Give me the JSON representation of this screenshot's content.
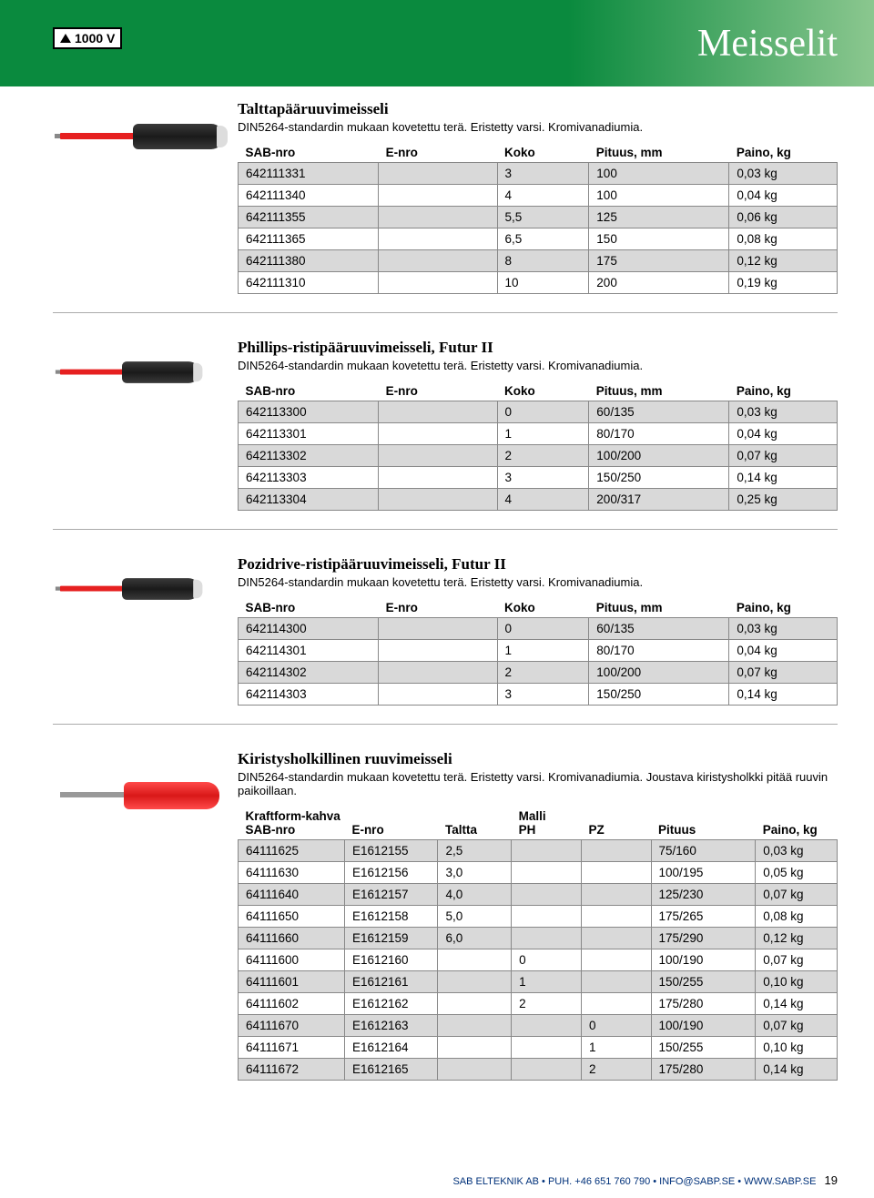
{
  "header": {
    "title": "Meisselit",
    "badge": "1000 V",
    "band_color_start": "#0a8a3e",
    "band_color_end": "#8bc78f"
  },
  "columns_std": [
    "SAB-nro",
    "E-nro",
    "Koko",
    "Pituus, mm",
    "Paino, kg"
  ],
  "section1": {
    "title": "Talttapääruuvimeisseli",
    "desc": "DIN5264-standardin mukaan kovetettu terä. Eristetty varsi. Kromivanadiumia.",
    "rows": [
      [
        "642111331",
        "",
        "3",
        "100",
        "0,03 kg"
      ],
      [
        "642111340",
        "",
        "4",
        "100",
        "0,04 kg"
      ],
      [
        "642111355",
        "",
        "5,5",
        "125",
        "0,06 kg"
      ],
      [
        "642111365",
        "",
        "6,5",
        "150",
        "0,08 kg"
      ],
      [
        "642111380",
        "",
        "8",
        "175",
        "0,12 kg"
      ],
      [
        "642111310",
        "",
        "10",
        "200",
        "0,19 kg"
      ]
    ]
  },
  "section2": {
    "title": "Phillips-ristipääruuvimeisseli, Futur II",
    "desc": "DIN5264-standardin mukaan kovetettu terä. Eristetty varsi. Kromivanadiumia.",
    "rows": [
      [
        "642113300",
        "",
        "0",
        "60/135",
        "0,03 kg"
      ],
      [
        "642113301",
        "",
        "1",
        "80/170",
        "0,04 kg"
      ],
      [
        "642113302",
        "",
        "2",
        "100/200",
        "0,07 kg"
      ],
      [
        "642113303",
        "",
        "3",
        "150/250",
        "0,14 kg"
      ],
      [
        "642113304",
        "",
        "4",
        "200/317",
        "0,25 kg"
      ]
    ]
  },
  "section3": {
    "title": "Pozidrive-ristipääruuvimeisseli, Futur II",
    "desc": "DIN5264-standardin mukaan kovetettu terä. Eristetty varsi. Kromivanadiumia.",
    "rows": [
      [
        "642114300",
        "",
        "0",
        "60/135",
        "0,03 kg"
      ],
      [
        "642114301",
        "",
        "1",
        "80/170",
        "0,04 kg"
      ],
      [
        "642114302",
        "",
        "2",
        "100/200",
        "0,07 kg"
      ],
      [
        "642114303",
        "",
        "3",
        "150/250",
        "0,14 kg"
      ]
    ]
  },
  "section4": {
    "title": "Kiristysholkillinen ruuvimeisseli",
    "desc": "DIN5264-standardin mukaan kovetettu terä. Eristetty varsi. Kromivanadiumia. Joustava kiristysholkki pitää ruuvin paikoillaan.",
    "sublabel_left": "Kraftform-kahva",
    "sublabel_mid": "Malli",
    "columns": [
      "SAB-nro",
      "E-nro",
      "Taltta",
      "PH",
      "PZ",
      "Pituus",
      "Paino, kg"
    ],
    "rows": [
      [
        "64111625",
        "E1612155",
        "2,5",
        "",
        "",
        "75/160",
        "0,03 kg"
      ],
      [
        "64111630",
        "E1612156",
        "3,0",
        "",
        "",
        "100/195",
        "0,05 kg"
      ],
      [
        "64111640",
        "E1612157",
        "4,0",
        "",
        "",
        "125/230",
        "0,07 kg"
      ],
      [
        "64111650",
        "E1612158",
        "5,0",
        "",
        "",
        "175/265",
        "0,08 kg"
      ],
      [
        "64111660",
        "E1612159",
        "6,0",
        "",
        "",
        "175/290",
        "0,12 kg"
      ],
      [
        "64111600",
        "E1612160",
        "",
        "0",
        "",
        "100/190",
        "0,07 kg"
      ],
      [
        "64111601",
        "E1612161",
        "",
        "1",
        "",
        "150/255",
        "0,10 kg"
      ],
      [
        "64111602",
        "E1612162",
        "",
        "2",
        "",
        "175/280",
        "0,14 kg"
      ],
      [
        "64111670",
        "E1612163",
        "",
        "",
        "0",
        "100/190",
        "0,07 kg"
      ],
      [
        "64111671",
        "E1612164",
        "",
        "",
        "1",
        "150/255",
        "0,10 kg"
      ],
      [
        "64111672",
        "E1612165",
        "",
        "",
        "2",
        "175/280",
        "0,14 kg"
      ]
    ]
  },
  "footer": {
    "text": "SAB ELTEKNIK AB • PUH. +46 651 760 790 • INFO@SABP.SE • WWW.SABP.SE",
    "page_num": "19"
  },
  "colors": {
    "row_alt": "#d9d9d9",
    "border": "#888888",
    "footer_text": "#00317a"
  }
}
